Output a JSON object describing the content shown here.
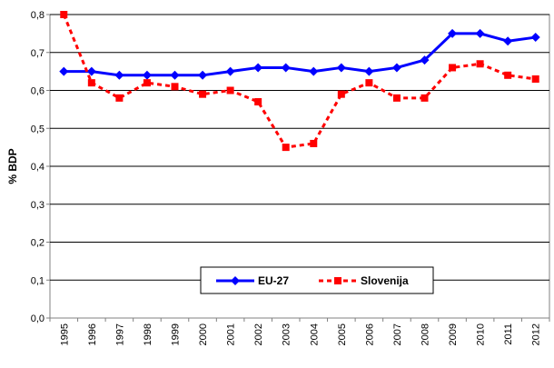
{
  "chart_data": {
    "type": "line",
    "ylabel": "% BDP",
    "xlabel": "",
    "ylim": [
      0,
      0.8
    ],
    "y_ticks": [
      "0,0",
      "0,1",
      "0,2",
      "0,3",
      "0,4",
      "0,5",
      "0,6",
      "0,7",
      "0,8"
    ],
    "y_tick_values": [
      0,
      0.1,
      0.2,
      0.3,
      0.4,
      0.5,
      0.6,
      0.7,
      0.8
    ],
    "categories": [
      "1995",
      "1996",
      "1997",
      "1998",
      "1999",
      "2000",
      "2001",
      "2002",
      "2003",
      "2004",
      "2005",
      "2006",
      "2007",
      "2008",
      "2009",
      "2010",
      "2011",
      "2012"
    ],
    "grid": "horizontal",
    "legend_position": "bottom-center",
    "series": [
      {
        "name": "EU-27",
        "color": "#0000ff",
        "style": "solid",
        "marker": "diamond",
        "values": [
          0.65,
          0.65,
          0.64,
          0.64,
          0.64,
          0.64,
          0.65,
          0.66,
          0.66,
          0.65,
          0.66,
          0.65,
          0.66,
          0.68,
          0.75,
          0.75,
          0.73,
          0.74
        ]
      },
      {
        "name": "Slovenija",
        "color": "#ff0000",
        "style": "dashed",
        "marker": "square",
        "values": [
          0.8,
          0.62,
          0.58,
          0.62,
          0.61,
          0.59,
          0.6,
          0.57,
          0.45,
          0.46,
          0.59,
          0.62,
          0.58,
          0.58,
          0.66,
          0.67,
          0.64,
          0.63
        ]
      }
    ]
  }
}
